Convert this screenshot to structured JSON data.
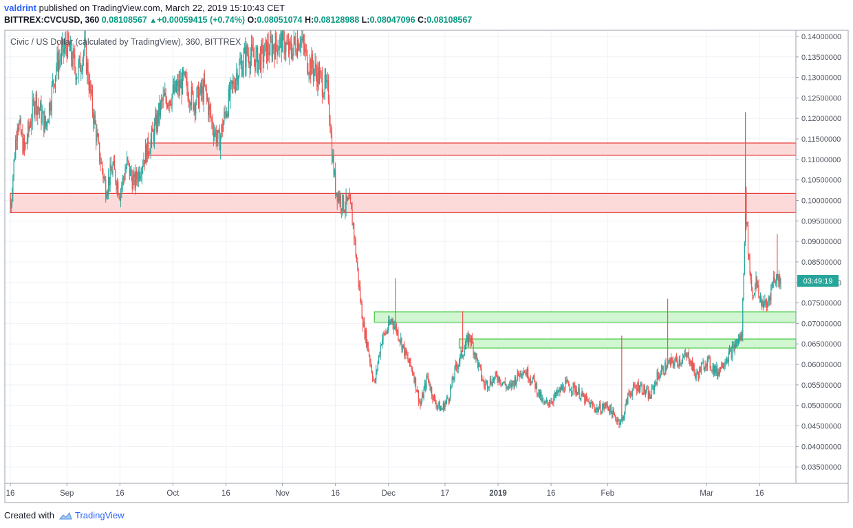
{
  "header": {
    "user": "valdrint",
    "published": "published on TradingView.com, March 22, 2019 15:10:43 CET",
    "symbol": "BITTREX:CVCUSD, 360",
    "last": "0.08108567",
    "change": "+0.00059415 (+0.74%)",
    "o_label": "O:",
    "o_value": "0.08051074",
    "h_label": "H:",
    "h_value": "0.08128988",
    "l_label": "L:",
    "l_value": "0.08047096",
    "c_label": "C:",
    "c_value": "0.08108567"
  },
  "footer": {
    "created_with": "Created with",
    "brand": "TradingView"
  },
  "colors": {
    "up": "#26a69a",
    "down": "#ef5350",
    "resistance_fill": "#fdd6d6",
    "resistance_stroke": "#e53935",
    "support_fill": "#cdf5cd",
    "support_stroke": "#3cc83c",
    "grid": "#eef1f7",
    "countdown_bg": "#26a69a"
  },
  "chart_data": {
    "type": "candlestick",
    "title": "Civic / US Dollar (calculated by TradingView), 360, BITTREX",
    "countdown": "03:49:19",
    "last_price": 0.08108567,
    "ylim": [
      0.031,
      0.1415
    ],
    "y_ticks": [
      "0.03500000",
      "0.04000000",
      "0.04500000",
      "0.05000000",
      "0.05500000",
      "0.06000000",
      "0.06500000",
      "0.07000000",
      "0.07500000",
      "0.08000000",
      "0.08500000",
      "0.09000000",
      "0.09500000",
      "0.10000000",
      "0.10500000",
      "0.11000000",
      "0.11500000",
      "0.12000000",
      "0.12500000",
      "0.13000000",
      "0.13500000",
      "0.14000000"
    ],
    "x_range": [
      "2018-08-16",
      "2019-03-22"
    ],
    "x_ticks": [
      {
        "date": "2018-08-16",
        "label": "16",
        "bold": false
      },
      {
        "date": "2018-09-01",
        "label": "Sep",
        "bold": false
      },
      {
        "date": "2018-09-16",
        "label": "16",
        "bold": false
      },
      {
        "date": "2018-10-01",
        "label": "Oct",
        "bold": false
      },
      {
        "date": "2018-10-16",
        "label": "16",
        "bold": false
      },
      {
        "date": "2018-11-01",
        "label": "Nov",
        "bold": false
      },
      {
        "date": "2018-11-16",
        "label": "16",
        "bold": false
      },
      {
        "date": "2018-12-01",
        "label": "Dec",
        "bold": false
      },
      {
        "date": "2018-12-17",
        "label": "17",
        "bold": false
      },
      {
        "date": "2019-01-01",
        "label": "2019",
        "bold": true
      },
      {
        "date": "2019-01-16",
        "label": "16",
        "bold": false
      },
      {
        "date": "2019-02-01",
        "label": "Feb",
        "bold": false
      },
      {
        "date": "2019-03-01",
        "label": "Mar",
        "bold": false
      },
      {
        "date": "2019-03-16",
        "label": "16",
        "bold": false
      }
    ],
    "zones": [
      {
        "kind": "resistance",
        "from": "2018-09-24",
        "to": "2019-03-22",
        "low": 0.111,
        "high": 0.114
      },
      {
        "kind": "resistance",
        "from": "2018-08-16",
        "to": "2019-03-22",
        "low": 0.097,
        "high": 0.1017
      },
      {
        "kind": "support",
        "from": "2018-11-27",
        "to": "2019-03-22",
        "low": 0.0703,
        "high": 0.0728
      },
      {
        "kind": "support",
        "from": "2018-12-21",
        "to": "2019-03-22",
        "low": 0.064,
        "high": 0.0662
      }
    ],
    "price_path": [
      [
        "2018-08-16",
        0.098
      ],
      [
        "2018-08-18",
        0.12
      ],
      [
        "2018-08-20",
        0.112
      ],
      [
        "2018-08-23",
        0.125
      ],
      [
        "2018-08-26",
        0.118
      ],
      [
        "2018-08-29",
        0.133
      ],
      [
        "2018-09-01",
        0.138
      ],
      [
        "2018-09-04",
        0.131
      ],
      [
        "2018-09-06",
        0.137
      ],
      [
        "2018-09-08",
        0.124
      ],
      [
        "2018-09-10",
        0.112
      ],
      [
        "2018-09-12",
        0.103
      ],
      [
        "2018-09-14",
        0.108
      ],
      [
        "2018-09-16",
        0.102
      ],
      [
        "2018-09-18",
        0.109
      ],
      [
        "2018-09-20",
        0.104
      ],
      [
        "2018-09-23",
        0.111
      ],
      [
        "2018-09-25",
        0.115
      ],
      [
        "2018-09-28",
        0.124
      ],
      [
        "2018-10-01",
        0.126
      ],
      [
        "2018-10-04",
        0.129
      ],
      [
        "2018-10-07",
        0.124
      ],
      [
        "2018-10-10",
        0.127
      ],
      [
        "2018-10-12",
        0.119
      ],
      [
        "2018-10-14",
        0.114
      ],
      [
        "2018-10-16",
        0.122
      ],
      [
        "2018-10-19",
        0.131
      ],
      [
        "2018-10-22",
        0.136
      ],
      [
        "2018-10-25",
        0.134
      ],
      [
        "2018-10-28",
        0.137
      ],
      [
        "2018-11-01",
        0.139
      ],
      [
        "2018-11-03",
        0.136
      ],
      [
        "2018-11-06",
        0.14
      ],
      [
        "2018-11-08",
        0.134
      ],
      [
        "2018-11-10",
        0.132
      ],
      [
        "2018-11-12",
        0.129
      ],
      [
        "2018-11-14",
        0.126
      ],
      [
        "2018-11-15",
        0.112
      ],
      [
        "2018-11-16",
        0.103
      ],
      [
        "2018-11-18",
        0.099
      ],
      [
        "2018-11-20",
        0.099
      ],
      [
        "2018-11-21",
        0.094
      ],
      [
        "2018-11-22",
        0.085
      ],
      [
        "2018-11-23",
        0.076
      ],
      [
        "2018-11-24",
        0.069
      ],
      [
        "2018-11-25",
        0.065
      ],
      [
        "2018-11-27",
        0.055
      ],
      [
        "2018-11-29",
        0.066
      ],
      [
        "2018-12-01",
        0.069
      ],
      [
        "2018-12-02",
        0.071
      ],
      [
        "2018-12-04",
        0.067
      ],
      [
        "2018-12-06",
        0.062
      ],
      [
        "2018-12-08",
        0.058
      ],
      [
        "2018-12-10",
        0.05
      ],
      [
        "2018-12-12",
        0.057
      ],
      [
        "2018-12-14",
        0.051
      ],
      [
        "2018-12-16",
        0.049
      ],
      [
        "2018-12-18",
        0.052
      ],
      [
        "2018-12-20",
        0.059
      ],
      [
        "2018-12-22",
        0.063
      ],
      [
        "2018-12-24",
        0.067
      ],
      [
        "2018-12-26",
        0.061
      ],
      [
        "2018-12-28",
        0.055
      ],
      [
        "2019-01-01",
        0.057
      ],
      [
        "2019-01-04",
        0.054
      ],
      [
        "2019-01-08",
        0.059
      ],
      [
        "2019-01-11",
        0.056
      ],
      [
        "2019-01-14",
        0.05
      ],
      [
        "2019-01-17",
        0.052
      ],
      [
        "2019-01-20",
        0.055
      ],
      [
        "2019-01-23",
        0.054
      ],
      [
        "2019-01-26",
        0.051
      ],
      [
        "2019-01-29",
        0.049
      ],
      [
        "2019-02-01",
        0.05
      ],
      [
        "2019-02-03",
        0.047
      ],
      [
        "2019-02-05",
        0.046
      ],
      [
        "2019-02-07",
        0.053
      ],
      [
        "2019-02-10",
        0.055
      ],
      [
        "2019-02-13",
        0.052
      ],
      [
        "2019-02-15",
        0.057
      ],
      [
        "2019-02-18",
        0.06
      ],
      [
        "2019-02-21",
        0.061
      ],
      [
        "2019-02-24",
        0.062
      ],
      [
        "2019-02-26",
        0.057
      ],
      [
        "2019-03-01",
        0.061
      ],
      [
        "2019-03-04",
        0.058
      ],
      [
        "2019-03-06",
        0.061
      ],
      [
        "2019-03-08",
        0.063
      ],
      [
        "2019-03-10",
        0.066
      ],
      [
        "2019-03-11",
        0.067
      ],
      [
        "2019-03-12",
        0.1
      ],
      [
        "2019-03-13",
        0.085
      ],
      [
        "2019-03-14",
        0.077
      ],
      [
        "2019-03-15",
        0.08
      ],
      [
        "2019-03-16",
        0.076
      ],
      [
        "2019-03-18",
        0.074
      ],
      [
        "2019-03-20",
        0.081
      ],
      [
        "2019-03-22",
        0.081
      ]
    ],
    "spikes": [
      {
        "date": "2018-12-03",
        "high": 0.081
      },
      {
        "date": "2018-12-22",
        "high": 0.073
      },
      {
        "date": "2019-02-05",
        "high": 0.067
      },
      {
        "date": "2019-02-18",
        "high": 0.076
      },
      {
        "date": "2019-03-12",
        "high": 0.1215
      },
      {
        "date": "2019-03-21",
        "high": 0.0918
      }
    ]
  }
}
